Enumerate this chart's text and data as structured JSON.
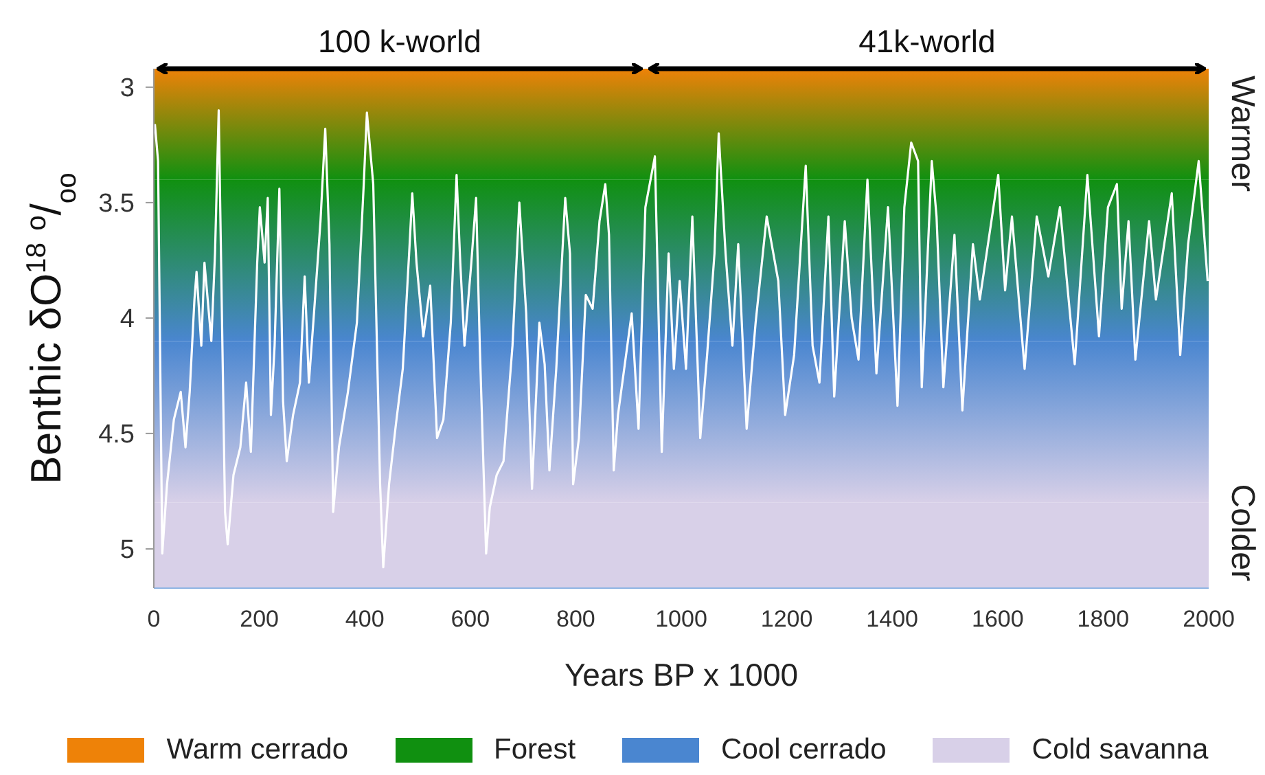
{
  "chart_data": {
    "type": "line",
    "xlabel": "Years BP x 1000",
    "ylabel": "Benthic δO$^{18}$ $^{o}$/$_{oo}$",
    "xlim": [
      0,
      2000
    ],
    "xticks": [
      0,
      200,
      400,
      600,
      800,
      1000,
      1200,
      1400,
      1600,
      1800,
      2000
    ],
    "ylim": [
      5.17,
      2.92
    ],
    "yticks": [
      3,
      3.5,
      4,
      4.5,
      5
    ],
    "grid": false,
    "legend": "bottom",
    "bands": [
      {
        "axis": "y",
        "from": 2.92,
        "to": 3.4,
        "label": "Warm cerrado",
        "color": "#ee8208"
      },
      {
        "axis": "y",
        "from": 3.4,
        "to": 4.1,
        "label": "Forest",
        "color": "#109010"
      },
      {
        "axis": "y",
        "from": 4.1,
        "to": 4.8,
        "label": "Cool cerrado",
        "color": "#4a86d0"
      },
      {
        "axis": "y",
        "from": 4.8,
        "to": 5.17,
        "label": "Cold savanna",
        "color": "#d8d0e8"
      }
    ],
    "annotations": [
      {
        "text": "100 k-world",
        "x": 466,
        "y": 2.92
      },
      {
        "text": "41k-world",
        "x": 1466,
        "y": 2.92
      },
      "Warmer",
      "Colder"
    ],
    "series": [
      {
        "color": "#ffffff",
        "x": [
          2,
          8,
          16,
          25,
          38,
          51,
          60,
          68,
          77,
          81,
          90,
          96,
          109,
          116,
          123,
          135,
          140,
          151,
          164,
          175,
          184,
          196,
          201,
          210,
          216,
          222,
          229,
          238,
          245,
          252,
          264,
          277,
          286,
          294,
          303,
          316,
          325,
          333,
          340,
          351,
          368,
          385,
          398,
          404,
          416,
          429,
          435,
          446,
          459,
          472,
          485,
          490,
          498,
          511,
          524,
          537,
          549,
          563,
          574,
          581,
          589,
          602,
          611,
          618,
          630,
          637,
          650,
          663,
          680,
          693,
          706,
          717,
          731,
          741,
          750,
          763,
          780,
          789,
          795,
          806,
          819,
          832,
          845,
          856,
          863,
          872,
          880,
          906,
          919,
          932,
          950,
          963,
          976,
          986,
          997,
          1009,
          1021,
          1036,
          1049,
          1063,
          1071,
          1084,
          1097,
          1108,
          1124,
          1141,
          1162,
          1184,
          1197,
          1214,
          1236,
          1249,
          1262,
          1279,
          1290,
          1310,
          1323,
          1336,
          1353,
          1370,
          1392,
          1410,
          1423,
          1436,
          1449,
          1456,
          1475,
          1484,
          1497,
          1518,
          1533,
          1553,
          1566,
          1601,
          1614,
          1627,
          1651,
          1674,
          1696,
          1718,
          1746,
          1770,
          1792,
          1809,
          1826,
          1835,
          1848,
          1861,
          1887,
          1900,
          1930,
          1946,
          1961,
          1981,
          1998
        ],
        "values": [
          3.16,
          3.32,
          5.02,
          4.72,
          4.44,
          4.32,
          4.56,
          4.32,
          3.92,
          3.8,
          4.12,
          3.76,
          4.1,
          3.72,
          3.1,
          4.84,
          4.98,
          4.68,
          4.56,
          4.28,
          4.58,
          3.76,
          3.52,
          3.76,
          3.48,
          4.42,
          4.12,
          3.44,
          4.36,
          4.62,
          4.42,
          4.28,
          3.82,
          4.28,
          4.0,
          3.58,
          3.18,
          3.68,
          4.84,
          4.56,
          4.32,
          4.02,
          3.42,
          3.11,
          3.42,
          4.72,
          5.08,
          4.72,
          4.46,
          4.22,
          3.68,
          3.46,
          3.76,
          4.08,
          3.86,
          4.52,
          4.44,
          4.02,
          3.38,
          3.76,
          4.12,
          3.76,
          3.48,
          4.12,
          5.02,
          4.82,
          4.68,
          4.62,
          4.12,
          3.5,
          3.98,
          4.74,
          4.02,
          4.2,
          4.66,
          4.22,
          3.48,
          3.72,
          4.72,
          4.52,
          3.9,
          3.96,
          3.58,
          3.42,
          3.64,
          4.66,
          4.42,
          3.98,
          4.48,
          3.52,
          3.3,
          4.58,
          3.72,
          4.22,
          3.84,
          4.22,
          3.56,
          4.52,
          4.16,
          3.72,
          3.2,
          3.72,
          4.12,
          3.68,
          4.48,
          4.02,
          3.56,
          3.84,
          4.42,
          4.16,
          3.34,
          4.12,
          4.28,
          3.56,
          4.34,
          3.58,
          4.0,
          4.18,
          3.4,
          4.24,
          3.52,
          4.38,
          3.52,
          3.24,
          3.32,
          4.3,
          3.32,
          3.56,
          4.3,
          3.64,
          4.4,
          3.68,
          3.92,
          3.38,
          3.88,
          3.56,
          4.22,
          3.56,
          3.82,
          3.52,
          4.2,
          3.38,
          4.08,
          3.52,
          3.42,
          3.96,
          3.58,
          4.18,
          3.58,
          3.92,
          3.46,
          4.16,
          3.68,
          3.32,
          3.84
        ]
      }
    ]
  }
}
